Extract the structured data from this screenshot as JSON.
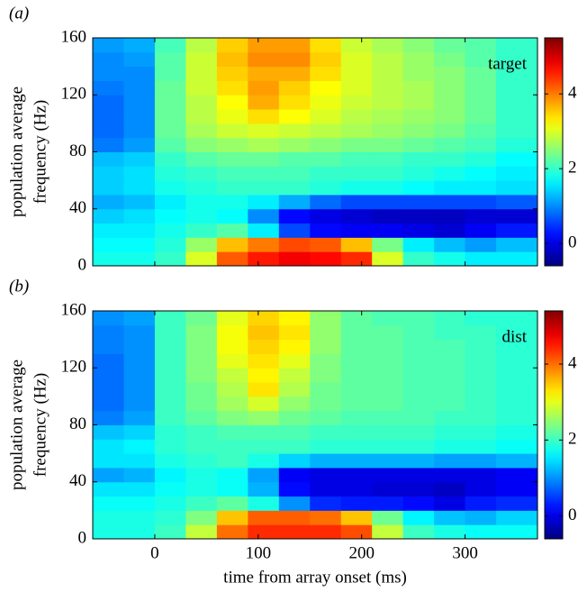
{
  "chart_data": [
    {
      "type": "heatmap",
      "panel_label": "(a)",
      "annotation": "target",
      "ylabel": [
        "population average",
        "frequency (Hz)"
      ],
      "colormap": "jet",
      "xlim": [
        -60,
        370
      ],
      "ylim": [
        0,
        160
      ],
      "xticks": [
        0,
        100,
        200,
        300
      ],
      "xticklabels": false,
      "yticks": [
        0,
        40,
        80,
        120,
        160
      ],
      "clim": [
        -0.6,
        5.5
      ],
      "cticks": [
        0,
        2,
        4
      ],
      "x_edges": [
        -60,
        -30,
        0,
        30,
        60,
        90,
        120,
        150,
        180,
        210,
        240,
        270,
        300,
        330,
        370
      ],
      "y_edges": [
        0,
        10,
        20,
        30,
        40,
        50,
        60,
        70,
        80,
        90,
        100,
        110,
        120,
        130,
        140,
        150,
        160
      ],
      "z": [
        [
          1.8,
          1.8,
          2.0,
          3.0,
          4.2,
          4.6,
          4.8,
          4.7,
          4.5,
          3.0,
          2.0,
          1.8,
          1.6,
          1.6
        ],
        [
          1.7,
          1.7,
          1.9,
          2.6,
          3.6,
          4.0,
          4.3,
          4.2,
          3.6,
          2.4,
          1.6,
          1.3,
          1.1,
          1.3
        ],
        [
          1.6,
          1.6,
          1.8,
          2.0,
          2.2,
          1.6,
          0.6,
          0.2,
          0.1,
          0.1,
          0.0,
          -0.1,
          0.1,
          0.3
        ],
        [
          1.4,
          1.5,
          1.7,
          1.8,
          1.7,
          1.0,
          0.2,
          0.0,
          -0.1,
          -0.2,
          -0.2,
          -0.2,
          -0.1,
          -0.1
        ],
        [
          1.2,
          1.3,
          1.6,
          1.8,
          1.8,
          1.6,
          1.2,
          0.8,
          0.6,
          0.6,
          0.6,
          0.6,
          0.6,
          0.7
        ],
        [
          1.4,
          1.5,
          1.8,
          1.9,
          2.0,
          2.0,
          2.0,
          1.9,
          1.8,
          1.8,
          1.7,
          1.6,
          1.6,
          1.5
        ],
        [
          1.4,
          1.5,
          1.9,
          2.0,
          2.1,
          2.1,
          2.1,
          2.0,
          2.0,
          2.0,
          1.9,
          1.8,
          1.7,
          1.6
        ],
        [
          1.3,
          1.4,
          2.0,
          2.2,
          2.3,
          2.3,
          2.2,
          2.2,
          2.1,
          2.1,
          2.0,
          2.0,
          1.9,
          1.7
        ],
        [
          0.9,
          1.1,
          2.2,
          2.5,
          2.6,
          2.7,
          2.6,
          2.5,
          2.4,
          2.4,
          2.3,
          2.2,
          2.1,
          1.9
        ],
        [
          0.8,
          1.0,
          2.3,
          2.7,
          2.9,
          3.0,
          2.9,
          2.8,
          2.7,
          2.6,
          2.5,
          2.4,
          2.2,
          2.0
        ],
        [
          0.8,
          1.0,
          2.3,
          2.8,
          3.1,
          3.4,
          3.2,
          3.0,
          2.8,
          2.7,
          2.6,
          2.5,
          2.3,
          2.0
        ],
        [
          0.8,
          1.0,
          2.3,
          2.8,
          3.2,
          3.7,
          3.4,
          3.1,
          2.9,
          2.8,
          2.7,
          2.5,
          2.3,
          2.0
        ],
        [
          0.9,
          1.0,
          2.3,
          2.9,
          3.4,
          3.8,
          3.5,
          3.2,
          3.0,
          2.8,
          2.7,
          2.5,
          2.3,
          2.0
        ],
        [
          1.0,
          1.0,
          2.2,
          2.9,
          3.5,
          3.7,
          3.7,
          3.4,
          3.0,
          2.8,
          2.6,
          2.5,
          2.3,
          2.0
        ],
        [
          1.0,
          1.1,
          2.2,
          2.9,
          3.6,
          3.9,
          3.9,
          3.5,
          3.0,
          2.8,
          2.6,
          2.4,
          2.2,
          2.0
        ],
        [
          1.1,
          1.2,
          2.1,
          2.8,
          3.5,
          3.8,
          3.8,
          3.4,
          2.9,
          2.7,
          2.5,
          2.3,
          2.2,
          2.0
        ]
      ]
    },
    {
      "type": "heatmap",
      "panel_label": "(b)",
      "annotation": "dist",
      "ylabel": [
        "population average",
        "frequency (Hz)"
      ],
      "xlabel": "time from array onset (ms)",
      "colormap": "jet",
      "xlim": [
        -60,
        370
      ],
      "ylim": [
        0,
        160
      ],
      "xticks": [
        0,
        100,
        200,
        300
      ],
      "xticklabels": true,
      "yticks": [
        0,
        40,
        80,
        120,
        160
      ],
      "clim": [
        -0.6,
        5.4
      ],
      "cticks": [
        0,
        2,
        4
      ],
      "x_edges": [
        -60,
        -30,
        0,
        30,
        60,
        90,
        120,
        150,
        180,
        210,
        240,
        270,
        300,
        330,
        370
      ],
      "y_edges": [
        0,
        10,
        20,
        30,
        40,
        50,
        60,
        70,
        80,
        90,
        100,
        110,
        120,
        130,
        140,
        150,
        160
      ],
      "z": [
        [
          1.8,
          1.8,
          2.0,
          2.8,
          4.0,
          4.4,
          4.4,
          4.4,
          4.2,
          2.8,
          2.0,
          1.8,
          1.7,
          1.7
        ],
        [
          1.8,
          1.8,
          1.9,
          2.4,
          3.5,
          4.1,
          4.1,
          4.0,
          3.5,
          2.3,
          1.6,
          1.3,
          1.2,
          1.4
        ],
        [
          1.7,
          1.7,
          1.8,
          2.0,
          2.2,
          1.8,
          1.0,
          0.4,
          0.3,
          0.3,
          0.2,
          0.0,
          0.3,
          0.4
        ],
        [
          1.5,
          1.5,
          1.7,
          1.8,
          1.7,
          1.2,
          0.2,
          0.0,
          0.0,
          -0.1,
          -0.1,
          -0.2,
          0.0,
          0.1
        ],
        [
          1.1,
          1.2,
          1.6,
          1.8,
          1.7,
          1.1,
          0.1,
          0.0,
          0.0,
          0.0,
          0.0,
          0.0,
          0.0,
          0.1
        ],
        [
          1.5,
          1.5,
          1.8,
          1.9,
          2.0,
          1.8,
          1.4,
          1.2,
          1.2,
          1.2,
          1.2,
          1.1,
          1.1,
          1.2
        ],
        [
          1.5,
          1.6,
          1.9,
          2.0,
          2.0,
          2.0,
          2.0,
          1.9,
          1.9,
          1.9,
          1.9,
          1.8,
          1.8,
          1.7
        ],
        [
          1.3,
          1.4,
          1.9,
          2.0,
          2.1,
          2.1,
          2.1,
          2.0,
          2.0,
          2.0,
          2.0,
          1.9,
          1.9,
          1.8
        ],
        [
          0.9,
          1.1,
          2.0,
          2.2,
          2.4,
          2.5,
          2.3,
          2.2,
          2.1,
          2.1,
          2.1,
          2.0,
          2.0,
          1.9
        ],
        [
          0.8,
          1.0,
          2.0,
          2.3,
          2.6,
          2.9,
          2.5,
          2.3,
          2.2,
          2.2,
          2.1,
          2.1,
          2.0,
          1.9
        ],
        [
          0.8,
          1.0,
          2.0,
          2.3,
          2.7,
          3.3,
          2.7,
          2.3,
          2.2,
          2.2,
          2.1,
          2.1,
          2.0,
          1.9
        ],
        [
          0.8,
          1.0,
          2.0,
          2.4,
          2.8,
          3.2,
          2.8,
          2.4,
          2.2,
          2.2,
          2.1,
          2.1,
          2.0,
          1.9
        ],
        [
          0.8,
          1.0,
          2.0,
          2.4,
          3.0,
          3.3,
          3.0,
          2.4,
          2.2,
          2.2,
          2.1,
          2.1,
          2.0,
          1.9
        ],
        [
          0.9,
          1.0,
          2.0,
          2.4,
          3.1,
          3.4,
          3.2,
          2.5,
          2.2,
          2.2,
          2.1,
          2.1,
          2.0,
          1.9
        ],
        [
          0.9,
          1.0,
          2.0,
          2.4,
          3.1,
          3.5,
          3.3,
          2.5,
          2.2,
          2.2,
          2.1,
          2.0,
          2.0,
          1.9
        ],
        [
          1.0,
          1.1,
          2.0,
          2.3,
          3.0,
          3.4,
          3.2,
          2.5,
          2.2,
          2.1,
          2.1,
          2.0,
          1.9,
          1.9
        ]
      ]
    }
  ]
}
